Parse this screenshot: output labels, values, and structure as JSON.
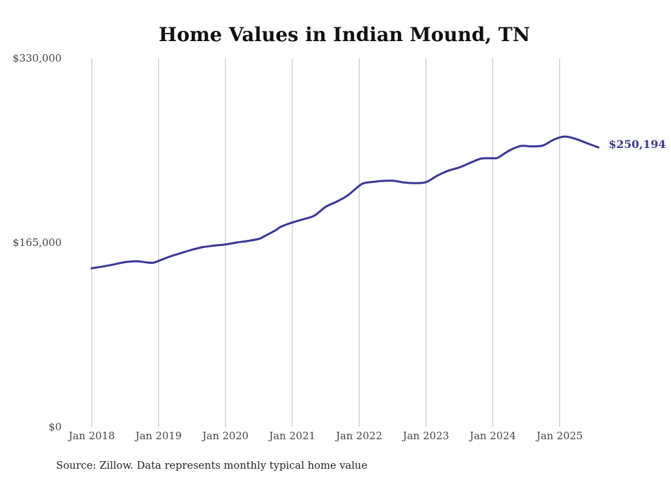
{
  "chart_data": {
    "type": "line",
    "title": "Home Values in Indian Mound, TN",
    "source": "Source: Zillow. Data represents monthly typical home value",
    "ylim": [
      0,
      330000
    ],
    "yticks": [
      "$0",
      "$165,000",
      "$330,000"
    ],
    "ytick_values": [
      0,
      165000,
      330000
    ],
    "xticks": [
      "Jan 2018",
      "Jan 2019",
      "Jan 2020",
      "Jan 2021",
      "Jan 2022",
      "Jan 2023",
      "Jan 2024",
      "Jan 2025"
    ],
    "xtick_values": [
      2018,
      2019,
      2020,
      2021,
      2022,
      2023,
      2024,
      2025
    ],
    "xlim": [
      2018,
      2025.58
    ],
    "grid": "vertical",
    "series_color": "#3b3599",
    "end_label": "$250,194",
    "series": [
      {
        "x": [
          2018.0,
          2018.25,
          2018.5,
          2018.67,
          2018.83,
          2018.92,
          2019.0,
          2019.17,
          2019.33,
          2019.5,
          2019.67,
          2019.83,
          2020.0,
          2020.17,
          2020.33,
          2020.5,
          2020.58,
          2020.75,
          2020.83,
          2021.0,
          2021.17,
          2021.33,
          2021.5,
          2021.67,
          2021.83,
          2022.0,
          2022.08,
          2022.25,
          2022.33,
          2022.5,
          2022.67,
          2022.83,
          2023.0,
          2023.17,
          2023.33,
          2023.5,
          2023.67,
          2023.83,
          2024.0,
          2024.08,
          2024.25,
          2024.42,
          2024.58,
          2024.75,
          2024.92,
          2025.08,
          2025.25,
          2025.42,
          2025.58
        ],
        "values": [
          142000,
          144500,
          147500,
          148300,
          147200,
          147000,
          148600,
          152500,
          155500,
          158600,
          161000,
          162300,
          163300,
          165100,
          166400,
          168300,
          170600,
          176000,
          179200,
          183000,
          186000,
          189100,
          197000,
          201800,
          207300,
          215800,
          218300,
          219600,
          220100,
          220400,
          218800,
          218200,
          219100,
          224900,
          229300,
          232300,
          236600,
          240200,
          240500,
          241100,
          247500,
          251500,
          251100,
          251900,
          257400,
          259900,
          257600,
          253700,
          250194
        ]
      }
    ]
  }
}
